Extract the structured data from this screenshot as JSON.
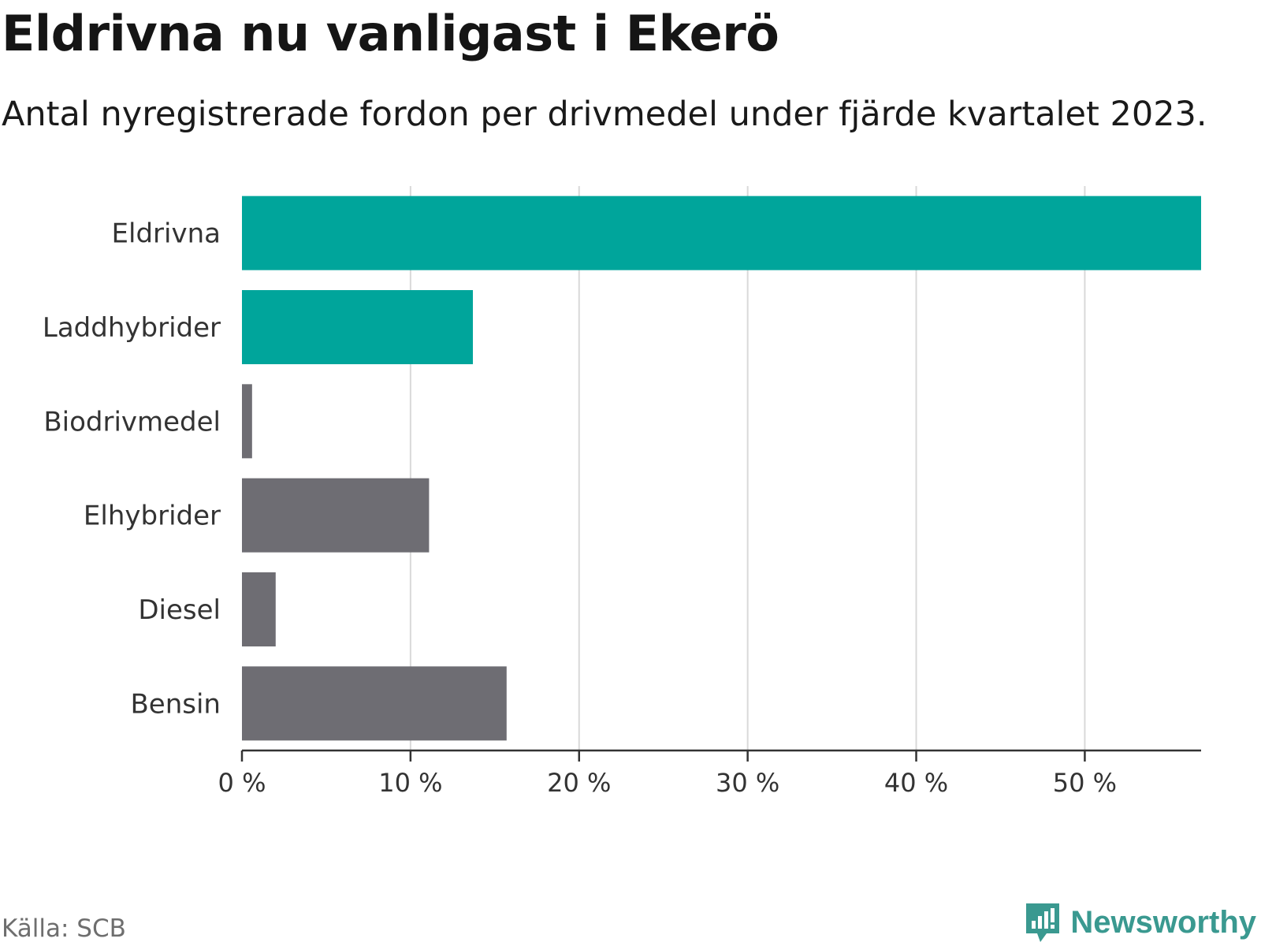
{
  "header": {
    "title": "Eldrivna nu vanligast i Ekerö",
    "subtitle": "Antal nyregistrerade fordon per drivmedel under fjärde kvartalet 2023."
  },
  "chart_data": {
    "type": "bar",
    "orientation": "horizontal",
    "title": "Eldrivna nu vanligast i Ekerö",
    "subtitle": "Antal nyregistrerade fordon per drivmedel under fjärde kvartalet 2023.",
    "xlabel": "",
    "ylabel": "",
    "categories": [
      "Eldrivna",
      "Laddhybrider",
      "Biodrivmedel",
      "Elhybrider",
      "Diesel",
      "Bensin"
    ],
    "values": [
      56.9,
      13.7,
      0.6,
      11.1,
      2.0,
      15.7
    ],
    "colors": [
      "#00a59b",
      "#00a59b",
      "#6e6d73",
      "#6e6d73",
      "#6e6d73",
      "#6e6d73"
    ],
    "xlim": [
      0,
      56.9
    ],
    "xticks": [
      0,
      10,
      20,
      30,
      40,
      50
    ],
    "xtick_labels": [
      "0 %",
      "10 %",
      "20 %",
      "30 %",
      "40 %",
      "50 %"
    ],
    "grid": "vertical",
    "gridline_color": "#d9d9d9",
    "axis_color": "#333333"
  },
  "footer": {
    "source": "Källa: SCB",
    "brand": "Newsworthy",
    "brand_icon": "newsworthy-logo-icon",
    "brand_color": "#3a9990"
  }
}
